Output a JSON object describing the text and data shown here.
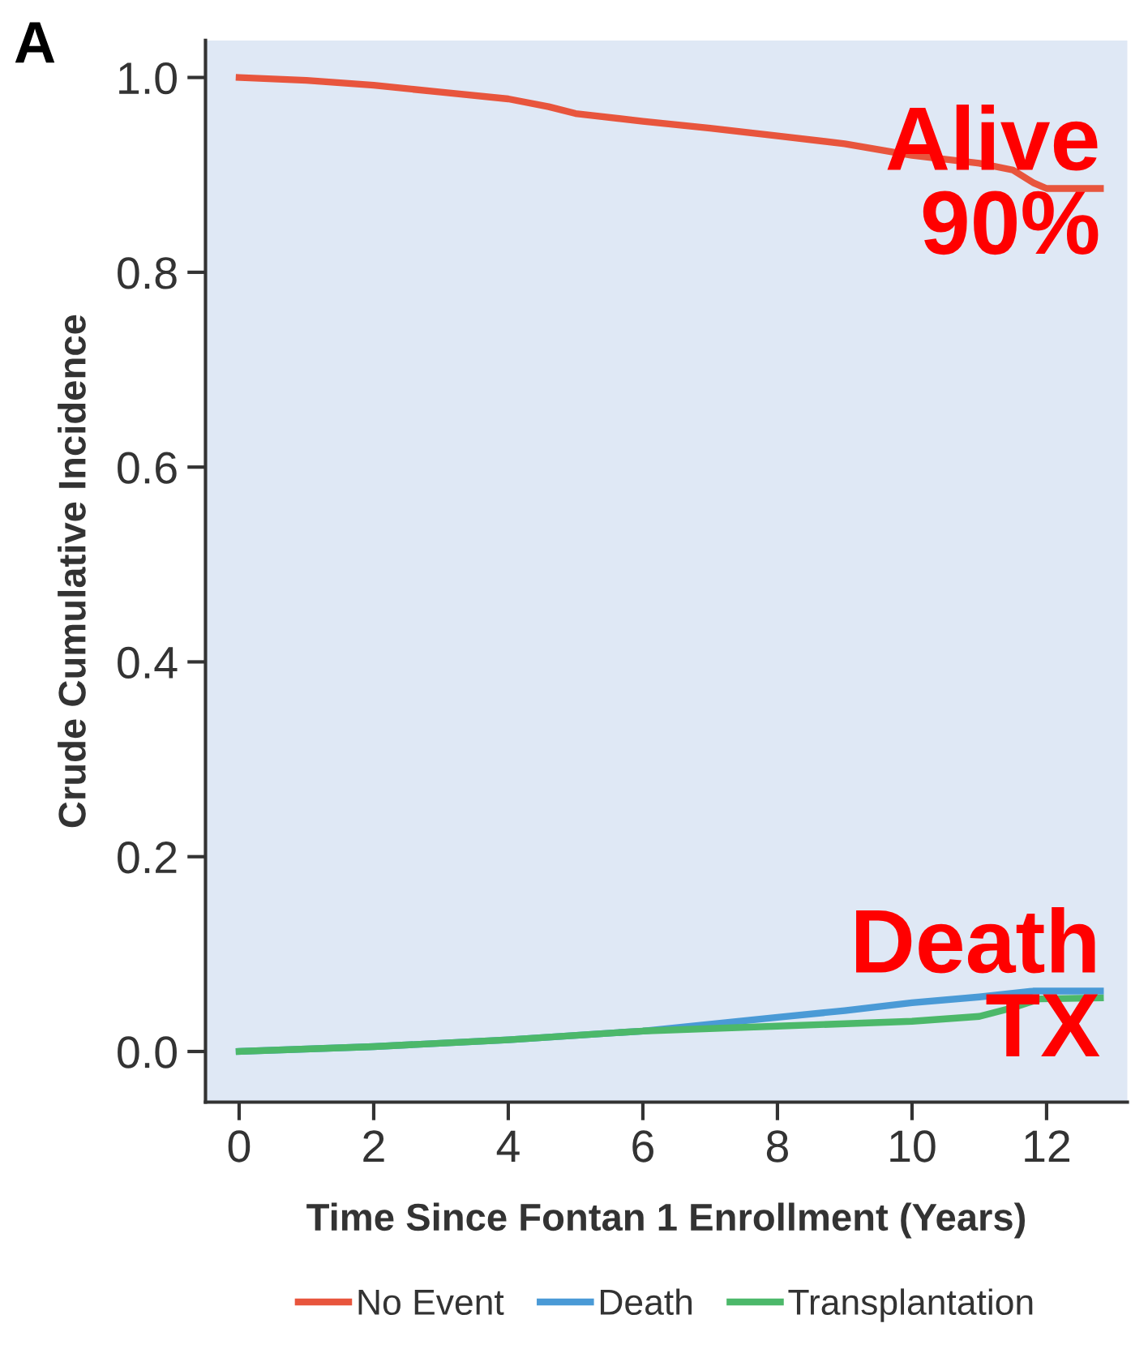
{
  "chart_data": {
    "type": "line",
    "title": "A",
    "xlabel": "Time Since Fontan 1 Enrollment (Years)",
    "ylabel": "Crude Cumulative Incidence",
    "series": [
      {
        "name": "No Event",
        "color": "#e8553d",
        "x": [
          0,
          1,
          2,
          3,
          4,
          4.6,
          5,
          6,
          7,
          8,
          9,
          10,
          11,
          11.5,
          11.8,
          12,
          12.8
        ],
        "values": [
          1.0,
          0.997,
          0.992,
          0.985,
          0.978,
          0.97,
          0.963,
          0.955,
          0.948,
          0.94,
          0.932,
          0.92,
          0.912,
          0.905,
          0.892,
          0.886,
          0.886
        ]
      },
      {
        "name": "Death",
        "color": "#4a9ad6",
        "x": [
          0,
          2,
          4,
          6,
          8,
          9,
          10,
          11,
          11.8,
          12.8
        ],
        "values": [
          0,
          0.005,
          0.012,
          0.021,
          0.035,
          0.042,
          0.05,
          0.056,
          0.062,
          0.062
        ]
      },
      {
        "name": "Transplantation",
        "color": "#4cb86a",
        "x": [
          0,
          2,
          4,
          6,
          8,
          10,
          11,
          11.5,
          11.9,
          12.8
        ],
        "values": [
          0,
          0.005,
          0.012,
          0.021,
          0.026,
          0.031,
          0.036,
          0.045,
          0.054,
          0.055
        ]
      }
    ],
    "xlim": [
      -0.5,
      13.2
    ],
    "ylim": [
      -0.052,
      1.038
    ],
    "xticks": [
      0,
      2,
      4,
      6,
      8,
      10,
      12
    ],
    "yticks": [
      {
        "value": 0,
        "label": "0.0"
      },
      {
        "value": 0.2,
        "label": "0.2"
      },
      {
        "value": 0.4,
        "label": "0.4"
      },
      {
        "value": 0.6,
        "label": "0.6"
      },
      {
        "value": 0.8,
        "label": "0.8"
      },
      {
        "value": 1,
        "label": "1.0"
      }
    ],
    "grid": false,
    "legend": "bottom",
    "marker": "none",
    "line_style": "solid",
    "annotations": [
      {
        "text": "Alive\n90%",
        "x": 12.8,
        "y": 0.886
      },
      {
        "text": "Death\nTX",
        "x": 12.8,
        "y": 0.062
      }
    ]
  }
}
